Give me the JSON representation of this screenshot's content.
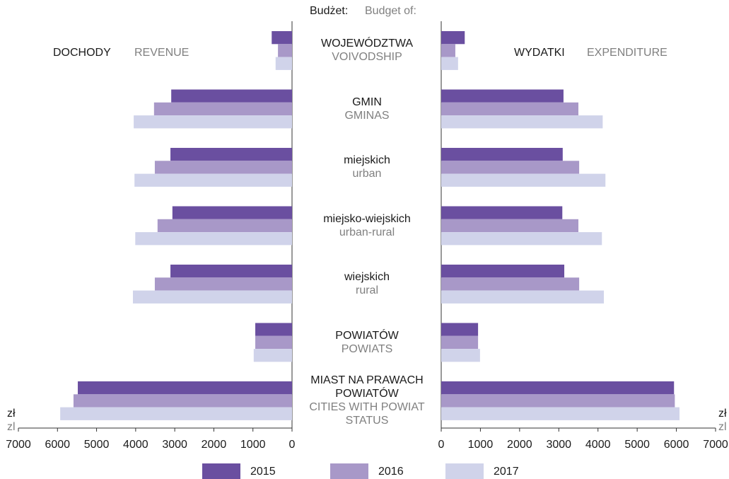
{
  "header": {
    "label": "Budżet:",
    "label_en": "Budget of:"
  },
  "category_labels": [
    {
      "pl": "WOJEWÓDZTWA",
      "en": "VOIVODSHIP"
    },
    {
      "pl": "GMIN",
      "en": "GMINAS"
    },
    {
      "pl": "miejskich",
      "en": "urban"
    },
    {
      "pl": "miejsko-wiejskich",
      "en": "urban-rural"
    },
    {
      "pl": "wiejskich",
      "en": "rural"
    },
    {
      "pl": "POWIATÓW",
      "en": "POWIATS"
    },
    {
      "pl": "MIAST NA PRAWACH POWIATÓW",
      "en": "CITIES WITH POWIAT STATUS"
    }
  ],
  "chart_data": [
    {
      "type": "bar",
      "orientation": "horizontal",
      "x_inverted": true,
      "title": "DOCHODY",
      "subtitle": "REVENUE",
      "xlabel": "zł",
      "xlabel_en": "zl",
      "xlim": [
        0,
        7000
      ],
      "xticks": [
        0,
        1000,
        2000,
        3000,
        4000,
        5000,
        6000,
        7000
      ],
      "series": [
        {
          "name": "2015",
          "color": "#6a4fa0",
          "values": [
            520,
            3090,
            3110,
            3060,
            3110,
            940,
            5480
          ]
        },
        {
          "name": "2016",
          "color": "#a898c8",
          "values": [
            360,
            3530,
            3510,
            3440,
            3510,
            940,
            5590
          ]
        },
        {
          "name": "2017",
          "color": "#d0d3ea",
          "values": [
            420,
            4050,
            4030,
            4010,
            4070,
            980,
            5930
          ]
        }
      ]
    },
    {
      "type": "bar",
      "orientation": "horizontal",
      "x_inverted": false,
      "title": "WYDATKI",
      "subtitle": "EXPENDITURE",
      "xlabel": "zł",
      "xlabel_en": "zl",
      "xlim": [
        0,
        7000
      ],
      "xticks": [
        0,
        1000,
        2000,
        3000,
        4000,
        5000,
        6000,
        7000
      ],
      "series": [
        {
          "name": "2015",
          "color": "#6a4fa0",
          "values": [
            600,
            3120,
            3100,
            3090,
            3140,
            940,
            5940
          ]
        },
        {
          "name": "2016",
          "color": "#a898c8",
          "values": [
            360,
            3500,
            3520,
            3500,
            3520,
            940,
            5960
          ]
        },
        {
          "name": "2017",
          "color": "#d0d3ea",
          "values": [
            430,
            4120,
            4190,
            4100,
            4150,
            990,
            6080
          ]
        }
      ]
    }
  ]
}
